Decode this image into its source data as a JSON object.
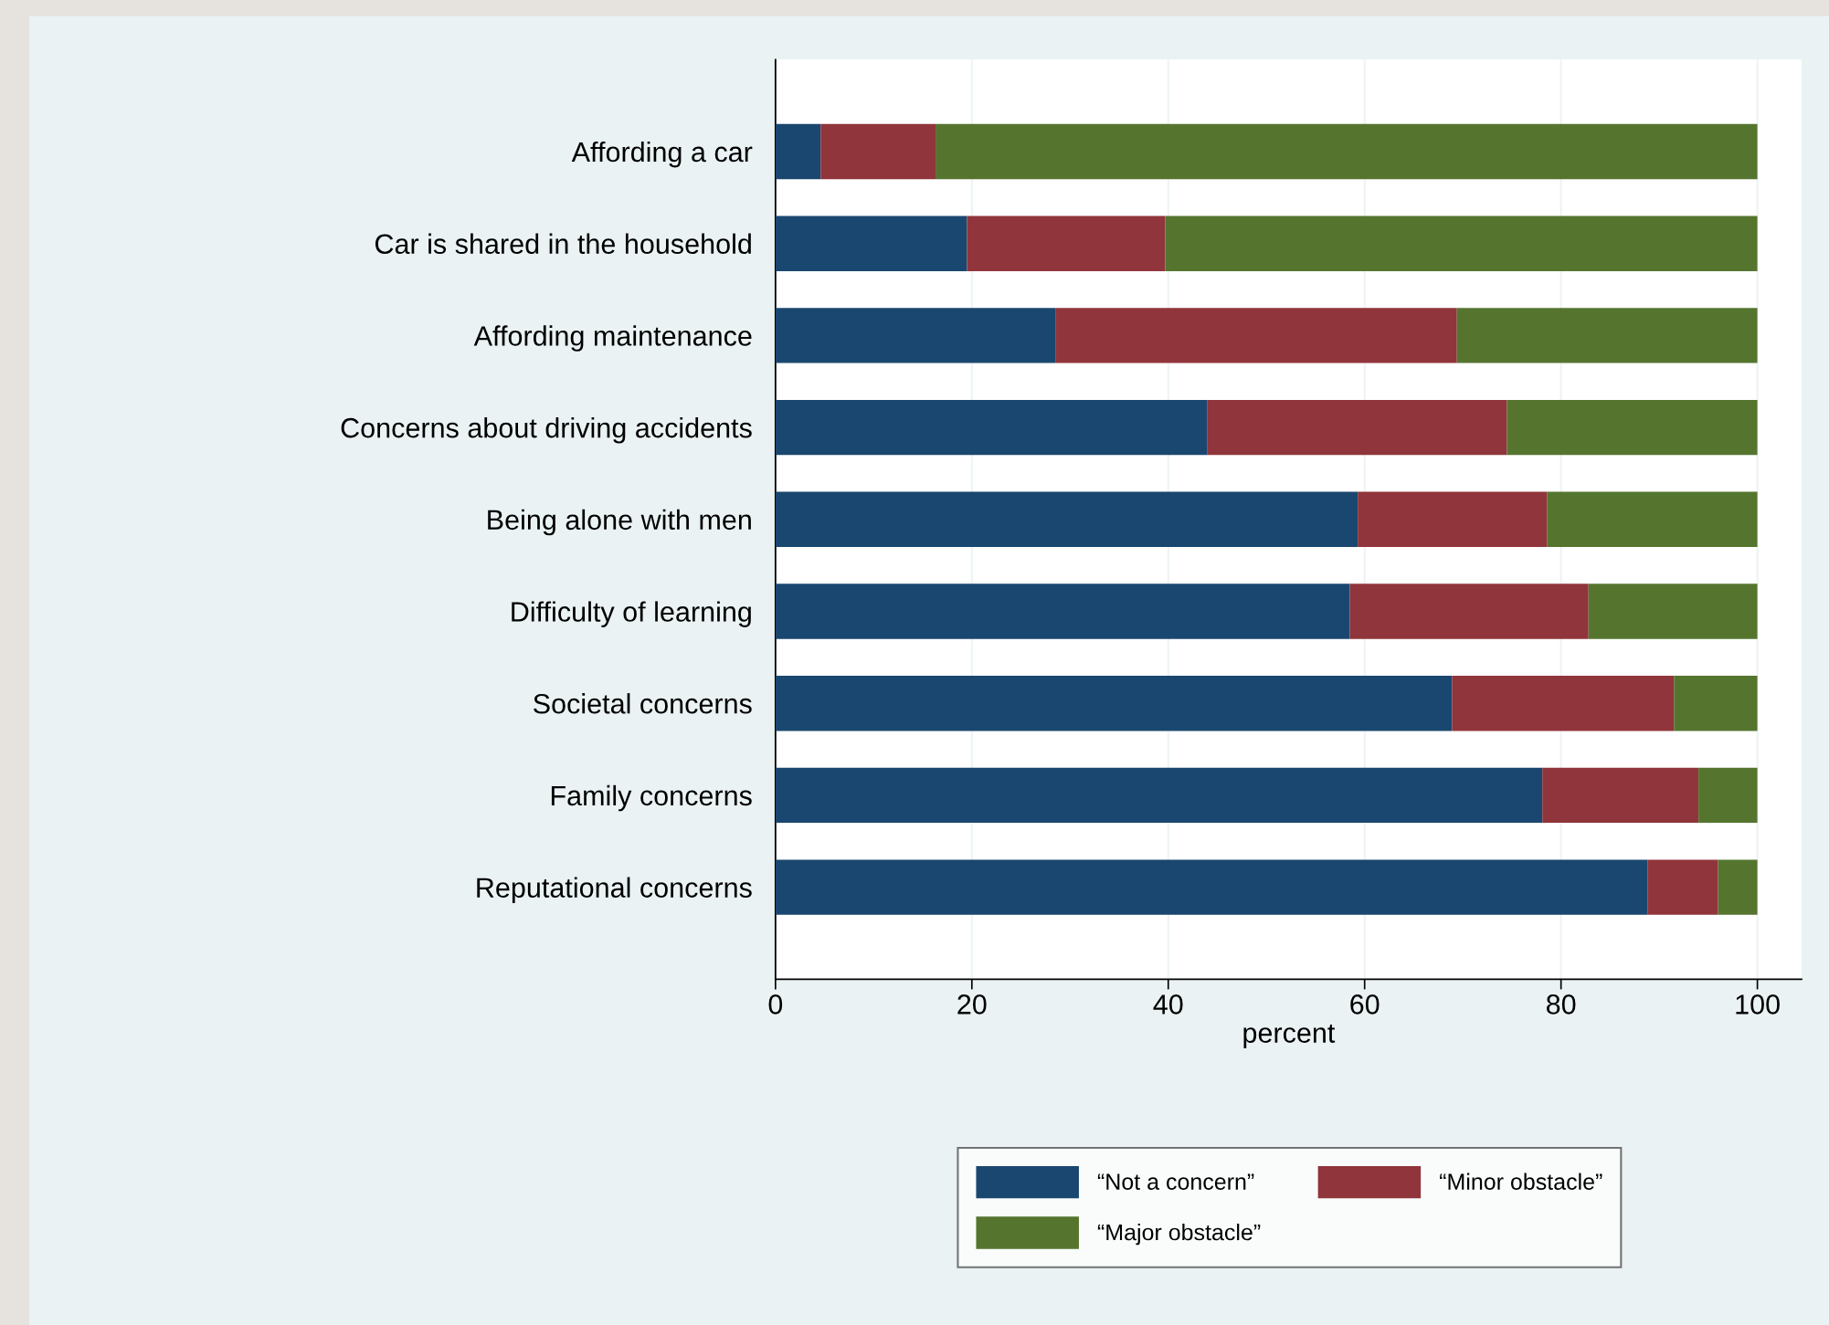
{
  "chart_data": {
    "type": "bar",
    "orientation": "horizontal",
    "stacked": true,
    "xlabel": "percent",
    "categories": [
      "Affording a car",
      "Car is shared in the household",
      "Affording maintenance",
      "Concerns about driving accidents",
      "Being alone with men",
      "Difficulty of learning",
      "Societal concerns",
      "Family concerns",
      "Reputational concerns"
    ],
    "series": [
      {
        "name": "“Not a concern”",
        "color": "#1a476f",
        "values": [
          4.6,
          19.5,
          28.5,
          44.0,
          59.3,
          58.5,
          68.9,
          78.1,
          88.8
        ]
      },
      {
        "name": "“Minor obstacle”",
        "color": "#90353b",
        "values": [
          11.7,
          20.2,
          40.9,
          30.5,
          19.3,
          24.3,
          22.6,
          15.9,
          7.2
        ]
      },
      {
        "name": "“Major obstacle”",
        "color": "#55752f",
        "values": [
          83.7,
          60.3,
          30.6,
          25.5,
          21.4,
          17.2,
          8.5,
          6.0,
          4.0
        ]
      }
    ],
    "xlim": [
      0,
      104.5
    ],
    "xticks": [
      0,
      20,
      40,
      60,
      80,
      100
    ],
    "grid": "x",
    "legend": "bottom"
  }
}
